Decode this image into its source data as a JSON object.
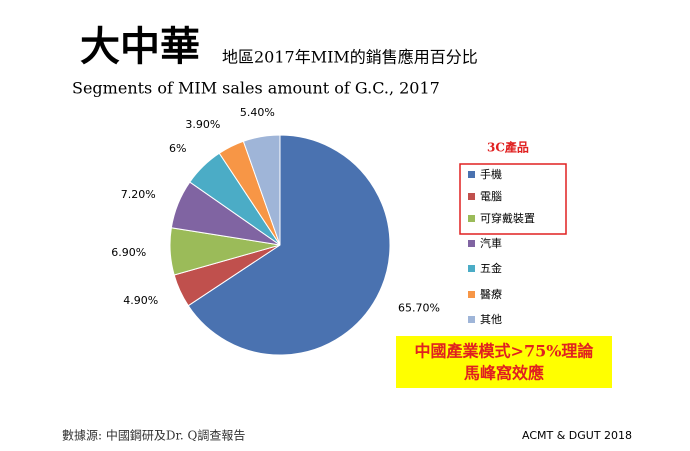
{
  "chart_data": {
    "type": "pie",
    "title": "大中華",
    "title_suffix": "地區2017年MIM的銷售應用百分比",
    "subtitle": "Segments of MIM sales amount of  G.C., 2017",
    "categories": [
      "手機",
      "電腦",
      "可穿戴裝置",
      "汽車",
      "五金",
      "醫療",
      "其他"
    ],
    "values": [
      65.7,
      4.9,
      6.9,
      7.2,
      6,
      3.9,
      5.4
    ],
    "value_labels": [
      "65.70%",
      "4.90%",
      "6.90%",
      "7.20%",
      "6%",
      "3.90%",
      "5.40%"
    ],
    "colors": [
      "#4a72b0",
      "#c0504d",
      "#9bbb59",
      "#8064a2",
      "#4bacc6",
      "#f79646",
      "#9fb5d8"
    ],
    "legend_group_label": "3C產品",
    "legend_group_size": 3,
    "callout": [
      "中國產業模式>75%理論",
      "馬峰窩效應"
    ],
    "source": "數據源: 中國鋼研及Dr. Q調查報告",
    "credit": "ACMT & DGUT 2018"
  }
}
